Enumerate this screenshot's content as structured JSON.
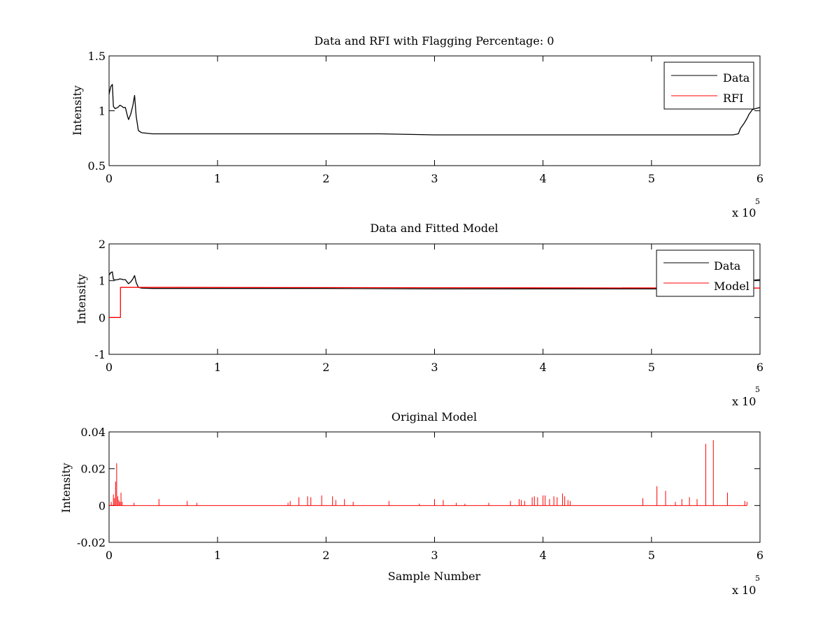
{
  "chart_data": [
    {
      "type": "line",
      "title": "Data and RFI with Flagging Percentage: 0",
      "xlabel": "",
      "ylabel": "Intensity",
      "xlim": [
        0,
        600000
      ],
      "ylim": [
        0.5,
        1.5
      ],
      "x_ticks": [
        "0",
        "1",
        "2",
        "3",
        "4",
        "5",
        "6"
      ],
      "y_ticks": [
        "0.5",
        "1",
        "1.5"
      ],
      "x_multiplier": {
        "base": "x 10",
        "exponent": "5"
      },
      "legend_position": "top-right",
      "grid": false,
      "series": [
        {
          "name": "Data",
          "color": "#000000",
          "x": [
            0,
            1500,
            3000,
            4000,
            5500,
            8000,
            10000,
            12000,
            13000,
            15000,
            17000,
            18000,
            20000,
            22000,
            23500,
            25000,
            27000,
            30000,
            40000,
            60000,
            100000,
            150000,
            200000,
            250000,
            300000,
            350000,
            400000,
            450000,
            500000,
            550000,
            575000,
            580000,
            582000,
            585000,
            588000,
            590000,
            593000,
            596000,
            600000
          ],
          "values": [
            1.15,
            1.22,
            1.24,
            1.04,
            1.02,
            1.03,
            1.05,
            1.04,
            1.03,
            1.03,
            0.95,
            0.92,
            0.97,
            1.05,
            1.14,
            0.95,
            0.82,
            0.8,
            0.79,
            0.79,
            0.79,
            0.79,
            0.79,
            0.79,
            0.78,
            0.78,
            0.78,
            0.78,
            0.78,
            0.78,
            0.78,
            0.79,
            0.84,
            0.88,
            0.93,
            0.97,
            1.01,
            1.02,
            1.03
          ]
        },
        {
          "name": "RFI",
          "color": "#ff0000",
          "x": [],
          "values": []
        }
      ]
    },
    {
      "type": "line",
      "title": "Data and Fitted Model",
      "xlabel": "",
      "ylabel": "Intensity",
      "xlim": [
        0,
        600000
      ],
      "ylim": [
        -1,
        2
      ],
      "x_ticks": [
        "0",
        "1",
        "2",
        "3",
        "4",
        "5",
        "6"
      ],
      "y_ticks": [
        "-1",
        "0",
        "1",
        "2"
      ],
      "x_multiplier": {
        "base": "x 10",
        "exponent": "5"
      },
      "legend_position": "top-right",
      "grid": false,
      "series": [
        {
          "name": "Data",
          "color": "#000000",
          "x": [
            0,
            1500,
            3000,
            4000,
            5500,
            8000,
            10000,
            12000,
            13000,
            15000,
            17000,
            18000,
            20000,
            22000,
            23500,
            25000,
            27000,
            30000,
            40000,
            60000,
            100000,
            200000,
            300000,
            400000,
            500000,
            550000,
            575000,
            580000,
            582000,
            585000,
            588000,
            590000,
            593000,
            596000,
            600000
          ],
          "values": [
            1.15,
            1.22,
            1.24,
            1.04,
            1.02,
            1.03,
            1.05,
            1.04,
            1.03,
            1.03,
            0.95,
            0.92,
            0.97,
            1.05,
            1.14,
            0.95,
            0.82,
            0.8,
            0.79,
            0.79,
            0.79,
            0.79,
            0.78,
            0.78,
            0.78,
            0.78,
            0.78,
            0.79,
            0.84,
            0.88,
            0.93,
            0.97,
            1.01,
            1.02,
            1.03
          ]
        },
        {
          "name": "Model",
          "color": "#ff0000",
          "x": [
            0,
            10500,
            10500,
            600000
          ],
          "values": [
            0,
            0,
            0.82,
            0.8
          ]
        }
      ]
    },
    {
      "type": "line",
      "title": "Original Model",
      "xlabel": "Sample Number",
      "ylabel": "Intensity",
      "xlim": [
        0,
        600000
      ],
      "ylim": [
        -0.02,
        0.04
      ],
      "x_ticks": [
        "0",
        "1",
        "2",
        "3",
        "4",
        "5",
        "6"
      ],
      "y_ticks": [
        "-0.02",
        "0",
        "0.02",
        "0.04"
      ],
      "x_multiplier": {
        "base": "x 10",
        "exponent": "5"
      },
      "legend_position": "none",
      "grid": false,
      "baseline": [
        0,
        588000
      ],
      "series": [
        {
          "color": "#ff0000",
          "x": [
            2000,
            4000,
            5000,
            6000,
            7000,
            8000,
            9000,
            10000,
            11000,
            12000,
            23000,
            46000,
            72000,
            81000,
            165000,
            167000,
            175000,
            183000,
            186000,
            196000,
            206000,
            209000,
            217000,
            225000,
            258000,
            286000,
            300000,
            308000,
            320000,
            328000,
            350000,
            370000,
            378000,
            380000,
            383000,
            390000,
            392000,
            395000,
            400000,
            402000,
            406000,
            410000,
            413000,
            418000,
            420000,
            423000,
            425000,
            492000,
            505000,
            513000,
            522000,
            528000,
            535000,
            542000,
            550000,
            557000,
            570000,
            586000,
            588000
          ],
          "values": [
            0.002,
            0.006,
            0.004,
            0.013,
            0.023,
            0.005,
            0.003,
            0.002,
            0.007,
            0.002,
            0.0015,
            0.0035,
            0.0025,
            0.0015,
            0.0015,
            0.0025,
            0.0045,
            0.005,
            0.0045,
            0.0055,
            0.005,
            0.003,
            0.0035,
            0.002,
            0.0025,
            0.001,
            0.0035,
            0.003,
            0.0015,
            0.001,
            0.0015,
            0.0025,
            0.0035,
            0.003,
            0.0025,
            0.0045,
            0.005,
            0.0045,
            0.0055,
            0.0055,
            0.0035,
            0.005,
            0.0045,
            0.0065,
            0.005,
            0.003,
            0.0025,
            0.004,
            0.0105,
            0.008,
            0.002,
            0.0035,
            0.0045,
            0.0035,
            0.0335,
            0.0355,
            0.007,
            0.0025,
            0.002
          ]
        }
      ]
    }
  ]
}
